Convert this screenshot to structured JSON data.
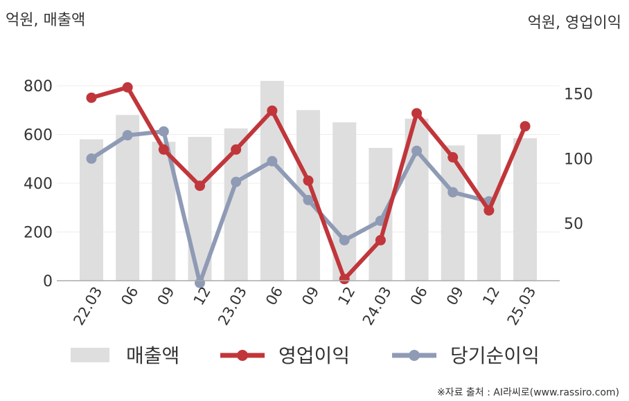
{
  "chart_data": {
    "type": "bar+line",
    "left_unit_label": "억원, 매출액",
    "right_unit_label": "억원, 영업이익",
    "categories": [
      "22.03",
      "06",
      "09",
      "12",
      "23.03",
      "06",
      "09",
      "12",
      "24.03",
      "06",
      "09",
      "12",
      "25.03"
    ],
    "left_axis": {
      "min": 0,
      "max": 800,
      "ticks": [
        0,
        200,
        400,
        600,
        800
      ]
    },
    "right_axis": {
      "min": 2,
      "max": 160,
      "ticks": [
        50,
        100,
        150
      ]
    },
    "series": [
      {
        "name": "매출액",
        "type": "bar",
        "axis": "left",
        "color": "#dedede",
        "values": [
          580,
          680,
          570,
          590,
          625,
          820,
          700,
          650,
          545,
          665,
          555,
          600,
          585
        ]
      },
      {
        "name": "영업이익",
        "type": "line",
        "axis": "right",
        "color": "#c0363a",
        "values": [
          147,
          155,
          107,
          79,
          107,
          137,
          83,
          7,
          37,
          135,
          101,
          60,
          125
        ]
      },
      {
        "name": "당기순이익",
        "type": "line",
        "axis": "right",
        "color": "#8f9bb5",
        "values": [
          100,
          118,
          121,
          4,
          82,
          98,
          68,
          37,
          52,
          106,
          74,
          67,
          null
        ]
      }
    ],
    "legend_position": "bottom",
    "grid": true,
    "source": "※자료 출처 : AI라씨로(www.rassiro.com)"
  }
}
